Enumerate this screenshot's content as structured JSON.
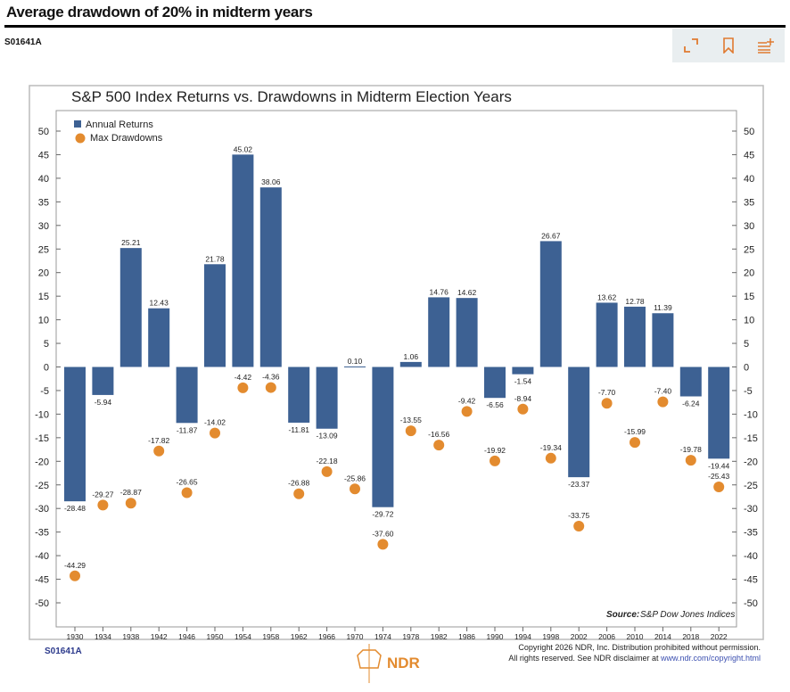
{
  "header": {
    "title": "Average drawdown of 20% in midterm years",
    "code": "S01641A"
  },
  "toolbar": {
    "icons": [
      "expand-icon",
      "bookmark-icon",
      "add-to-list-icon"
    ]
  },
  "colors": {
    "bar": "#3d6193",
    "dot": "#e38b2f",
    "accent": "#e07a30"
  },
  "chart_data": {
    "type": "bar",
    "title": "S&P 500 Index Returns vs. Drawdowns in Midterm Election Years",
    "categories": [
      "1930",
      "1934",
      "1938",
      "1942",
      "1946",
      "1950",
      "1954",
      "1958",
      "1962",
      "1966",
      "1970",
      "1974",
      "1978",
      "1982",
      "1986",
      "1990",
      "1994",
      "1998",
      "2002",
      "2006",
      "2010",
      "2014",
      "2018",
      "2022"
    ],
    "series": [
      {
        "name": "Annual Returns",
        "type": "bar",
        "values": [
          -28.48,
          -5.94,
          25.21,
          12.43,
          -11.87,
          21.78,
          45.02,
          38.06,
          -11.81,
          -13.09,
          0.1,
          -29.72,
          1.06,
          14.76,
          14.62,
          -6.56,
          -1.54,
          26.67,
          -23.37,
          13.62,
          12.78,
          11.39,
          -6.24,
          -19.44
        ]
      },
      {
        "name": "Max Drawdowns",
        "type": "scatter",
        "values": [
          -44.29,
          -29.27,
          -28.87,
          -17.82,
          -26.65,
          -14.02,
          -4.42,
          -4.36,
          -26.88,
          -22.18,
          -25.86,
          -37.6,
          -13.55,
          -16.56,
          -9.42,
          -19.92,
          -8.94,
          -19.34,
          -33.75,
          -7.7,
          -15.99,
          -7.4,
          -19.78,
          -25.43
        ]
      }
    ],
    "ylim": [
      -50,
      50
    ],
    "yticks": [
      50,
      45,
      40,
      35,
      30,
      25,
      20,
      15,
      10,
      5,
      0,
      -5,
      -10,
      -15,
      -20,
      -25,
      -30,
      -35,
      -40,
      -45,
      -50
    ],
    "legend": "top-left",
    "source_label": "Source:",
    "source": "S&P Dow Jones Indices"
  },
  "footer": {
    "code": "S01641A",
    "logo": "NDR",
    "copyright": "Copyright 2026 NDR, Inc. Distribution prohibited without permission.",
    "rights": "All rights reserved. See NDR disclaimer at ",
    "link": "www.ndr.com/copyright.html"
  }
}
